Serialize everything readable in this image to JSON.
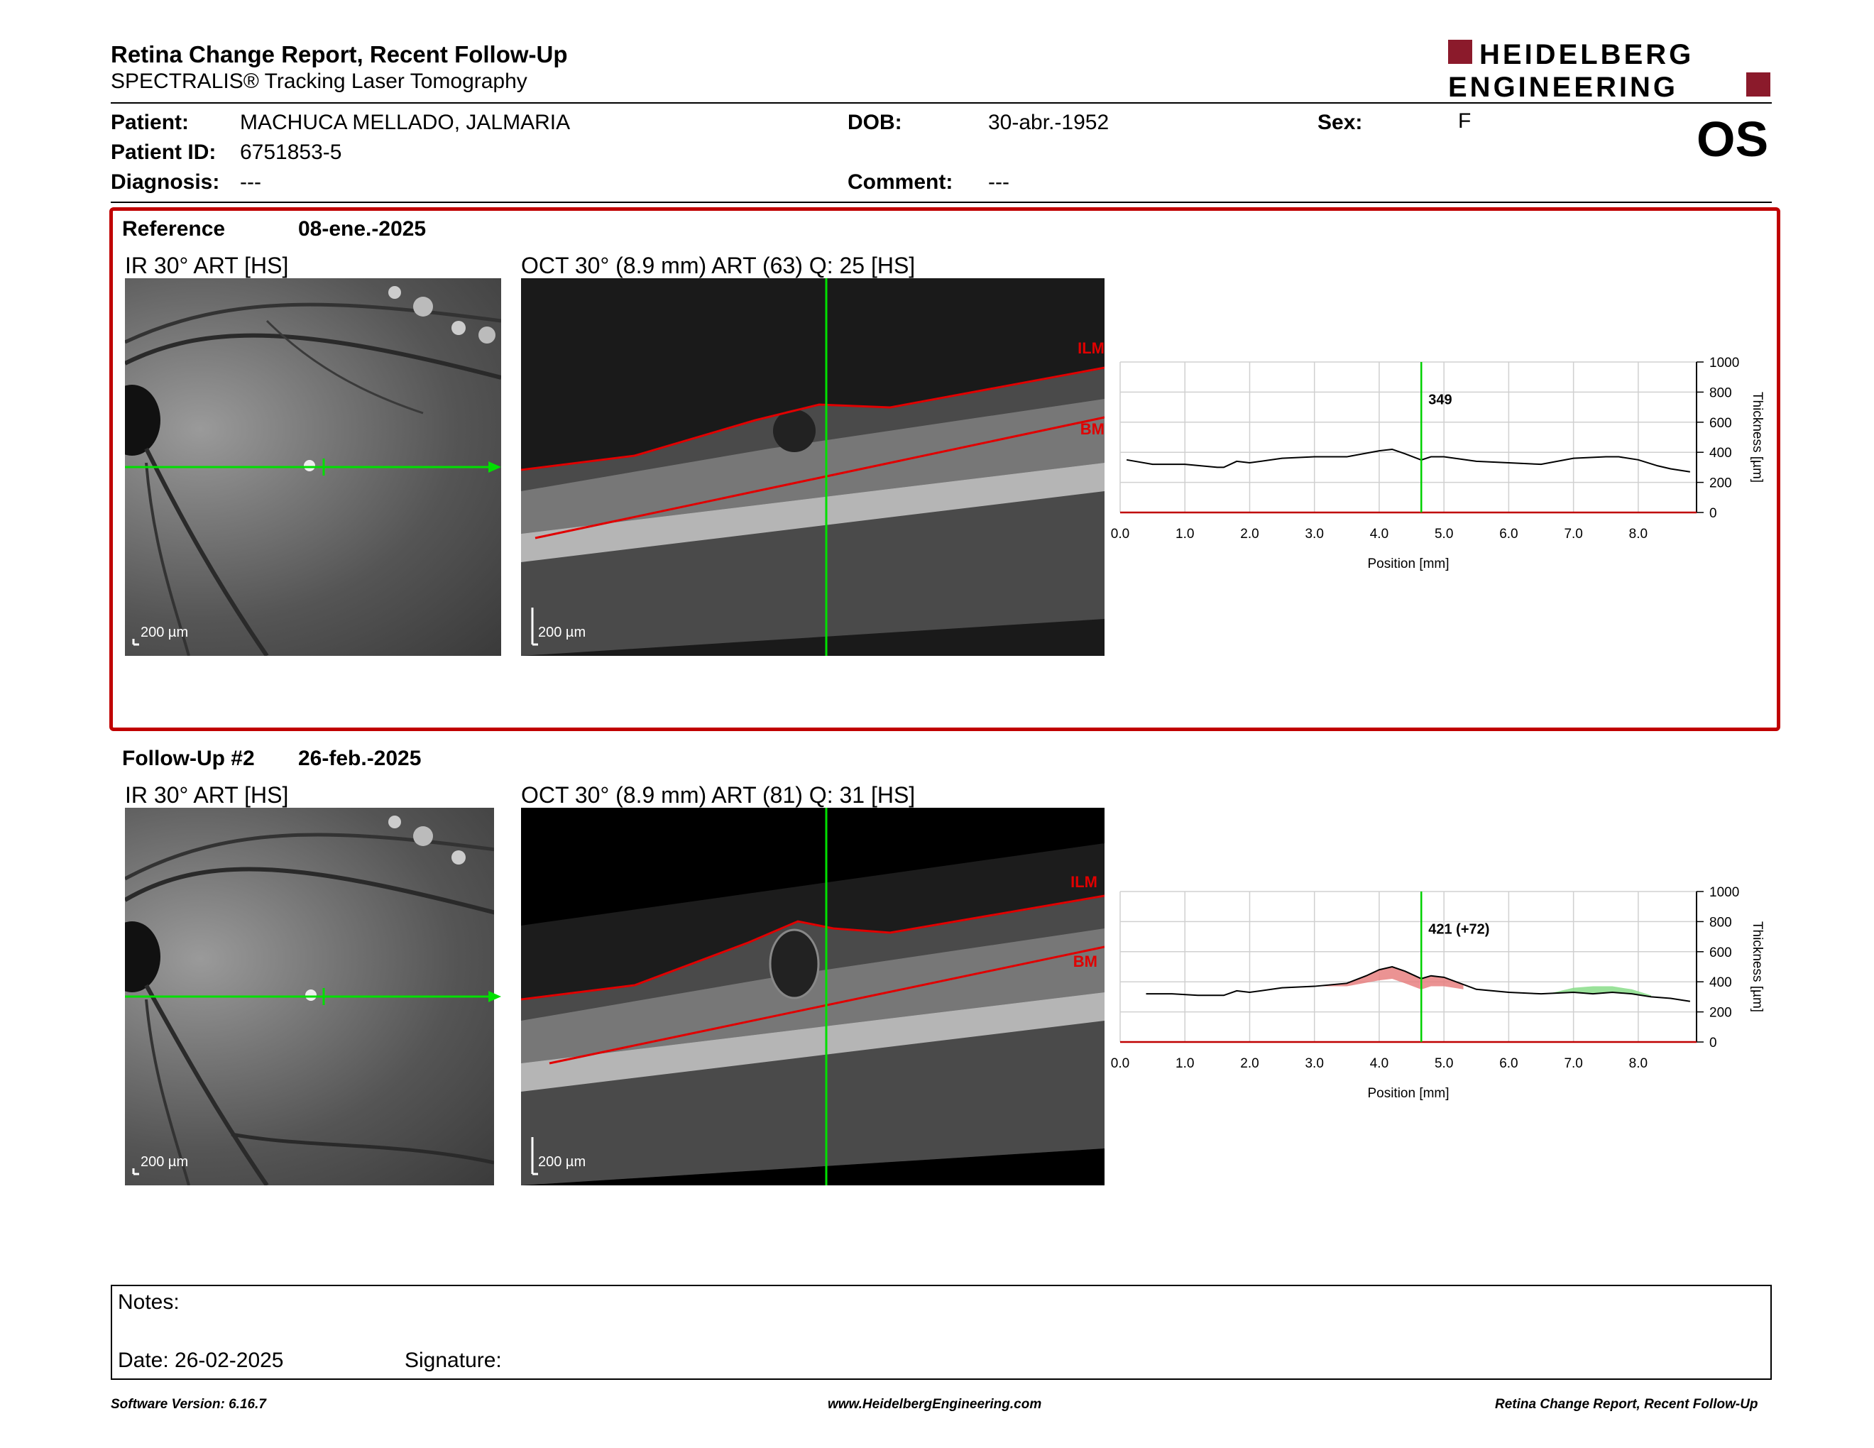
{
  "header": {
    "title": "Retina Change Report, Recent Follow-Up",
    "subtitle": "SPECTRALIS® Tracking Laser Tomography",
    "logo_line1": "HEIDELBERG",
    "logo_line2": "ENGINEERING",
    "brand_color": "#8b1a2b"
  },
  "patient": {
    "patient_label": "Patient:",
    "patient_name": "MACHUCA MELLADO, JALMARIA",
    "id_label": "Patient ID:",
    "id_value": "6751853-5",
    "diagnosis_label": "Diagnosis:",
    "diagnosis_value": "---",
    "dob_label": "DOB:",
    "dob_value": "30-abr.-1952",
    "comment_label": "Comment:",
    "comment_value": "---",
    "sex_label": "Sex:",
    "sex_value": "F",
    "eye": "OS"
  },
  "reference": {
    "label": "Reference",
    "date": "08-ene.-2025",
    "ir_label": "IR 30° ART [HS]",
    "oct_label": "OCT 30° (8.9 mm) ART (63) Q: 25 [HS]",
    "ir_scale": "200 µm",
    "oct_scale": "200 µm",
    "ilm": "ILM",
    "bm": "BM"
  },
  "followup": {
    "label": "Follow-Up #2",
    "date": "26-feb.-2025",
    "ir_label": "IR 30° ART [HS]",
    "oct_label": "OCT 30° (8.9 mm) ART (81) Q: 31 [HS]",
    "ir_scale": "200 µm",
    "oct_scale": "200 µm",
    "ilm": "ILM",
    "bm": "BM"
  },
  "chart_data": [
    {
      "type": "line",
      "xlabel": "Position [mm]",
      "ylabel": "Thickness [µm]",
      "xlim": [
        0,
        8.9
      ],
      "ylim": [
        0,
        1000
      ],
      "x_ticks": [
        "0.0",
        "1.0",
        "2.0",
        "3.0",
        "4.0",
        "5.0",
        "6.0",
        "7.0",
        "8.0"
      ],
      "y_ticks": [
        "0",
        "200",
        "400",
        "600",
        "800",
        "1000"
      ],
      "cursor_x": 4.65,
      "cursor_label": "349",
      "series": [
        {
          "x": [
            0.1,
            0.5,
            1.0,
            1.5,
            1.6,
            1.8,
            2.0,
            2.5,
            3.0,
            3.5,
            4.0,
            4.2,
            4.4,
            4.65,
            4.8,
            5.0,
            5.5,
            6.0,
            6.5,
            7.0,
            7.5,
            7.7,
            8.0,
            8.3,
            8.5,
            8.8
          ],
          "y": [
            350,
            320,
            320,
            300,
            300,
            340,
            330,
            360,
            370,
            370,
            410,
            420,
            390,
            349,
            370,
            370,
            340,
            330,
            320,
            360,
            370,
            370,
            350,
            310,
            290,
            270
          ]
        }
      ]
    },
    {
      "type": "line",
      "xlabel": "Position [mm]",
      "ylabel": "Thickness [µm]",
      "xlim": [
        0,
        8.9
      ],
      "ylim": [
        0,
        1000
      ],
      "x_ticks": [
        "0.0",
        "1.0",
        "2.0",
        "3.0",
        "4.0",
        "5.0",
        "6.0",
        "7.0",
        "8.0"
      ],
      "y_ticks": [
        "0",
        "200",
        "400",
        "600",
        "800",
        "1000"
      ],
      "cursor_x": 4.65,
      "cursor_label": "421 (+72)",
      "increase_color": "#e88080",
      "decrease_color": "#88dd88",
      "series": [
        {
          "x": [
            0.4,
            0.8,
            1.2,
            1.6,
            1.8,
            2.0,
            2.5,
            3.0,
            3.5,
            3.8,
            4.0,
            4.2,
            4.4,
            4.65,
            4.8,
            5.0,
            5.5,
            6.0,
            6.5,
            7.0,
            7.3,
            7.6,
            7.9,
            8.2,
            8.5,
            8.8
          ],
          "y": [
            320,
            320,
            310,
            310,
            340,
            330,
            360,
            370,
            390,
            440,
            480,
            500,
            470,
            421,
            440,
            430,
            350,
            330,
            320,
            330,
            320,
            330,
            320,
            300,
            290,
            270
          ]
        }
      ],
      "increase_region": {
        "x": [
          3.0,
          3.5,
          4.0,
          4.2,
          4.4,
          4.65,
          4.8,
          5.0,
          5.3
        ],
        "upper": [
          370,
          390,
          480,
          500,
          470,
          421,
          440,
          430,
          380
        ],
        "lower": [
          370,
          370,
          410,
          420,
          390,
          349,
          370,
          370,
          350
        ]
      },
      "decrease_region": {
        "x": [
          6.6,
          7.0,
          7.3,
          7.6,
          7.9,
          8.2
        ],
        "upper": [
          320,
          360,
          370,
          370,
          350,
          310
        ],
        "lower": [
          320,
          330,
          320,
          330,
          320,
          300
        ]
      }
    }
  ],
  "notes": {
    "notes_label": "Notes:",
    "date_label": "Date: 26-02-2025",
    "signature_label": "Signature:"
  },
  "footer": {
    "software": "Software Version: 6.16.7",
    "website": "www.HeidelbergEngineering.com",
    "report_name": "Retina Change Report, Recent Follow-Up"
  }
}
